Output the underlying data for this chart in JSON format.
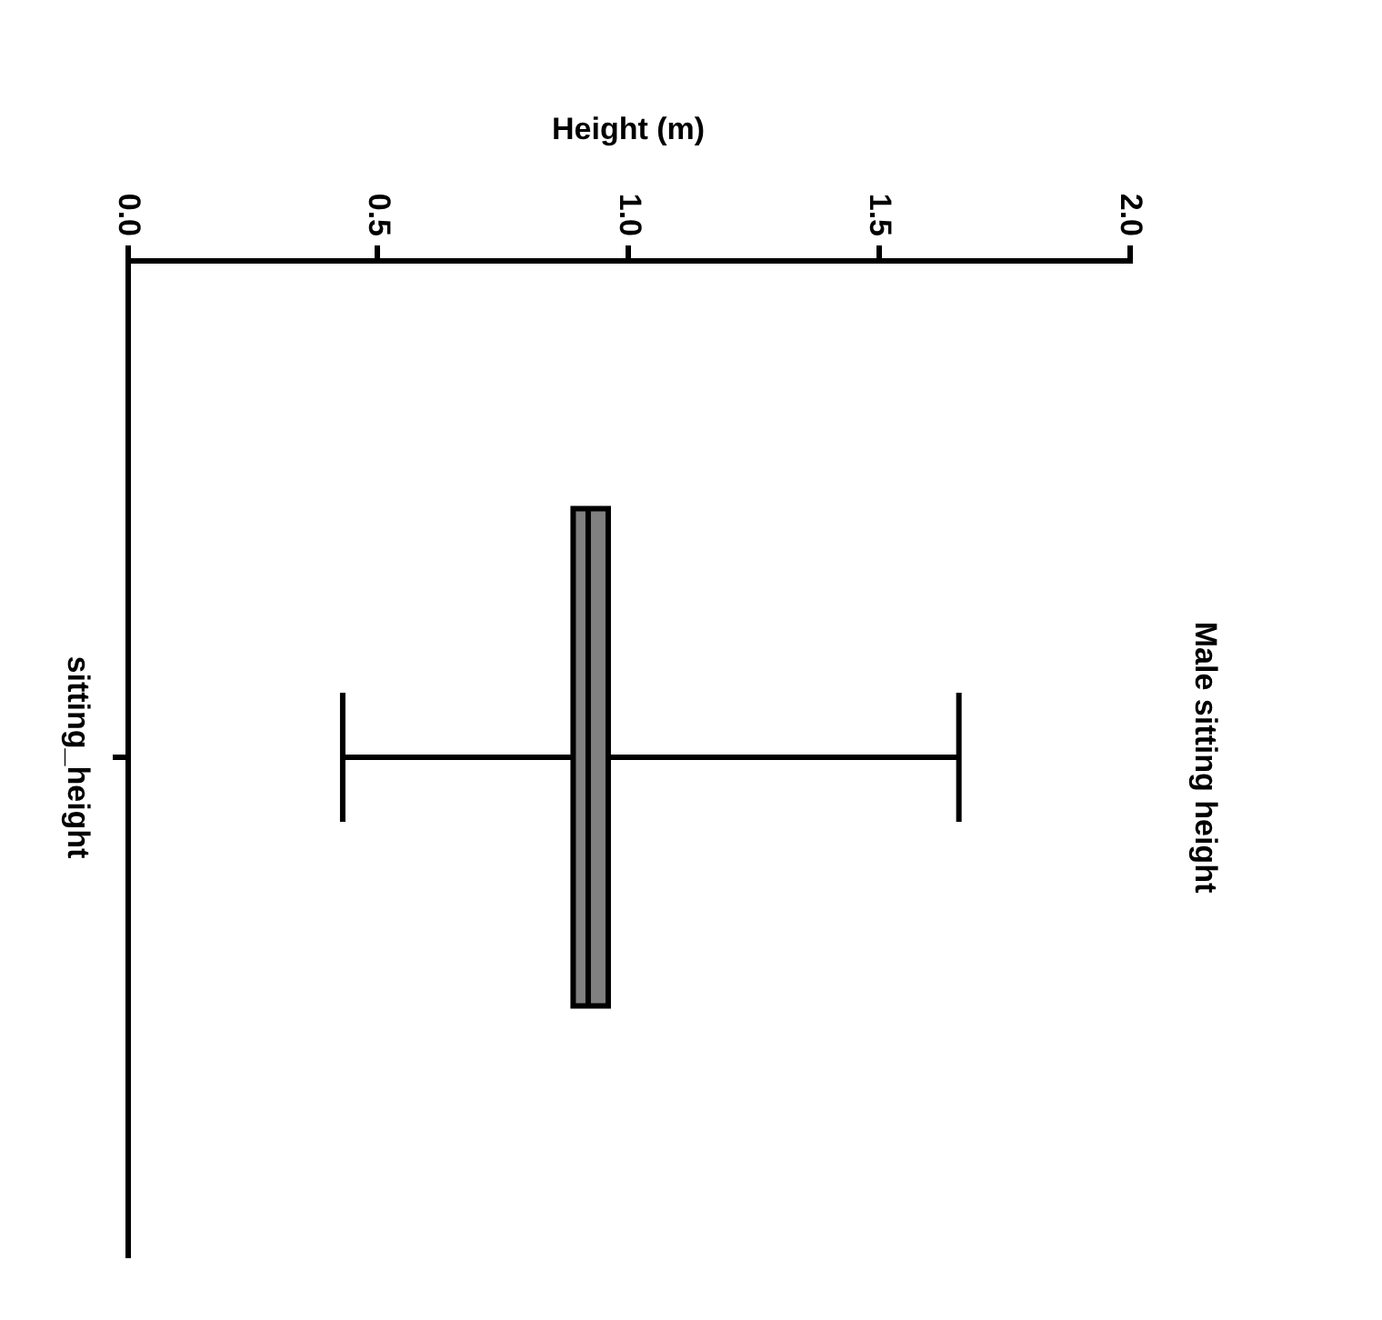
{
  "chart_data": {
    "type": "box",
    "orientation": "horizontal",
    "title": "Male sitting height",
    "xlabel": "Height (m)",
    "categories": [
      "sitting_height"
    ],
    "boxes": [
      {
        "low": 0.43,
        "q1": 0.89,
        "median": 0.92,
        "q3": 0.96,
        "high": 1.66
      }
    ],
    "color": "#808080",
    "xlim": [
      0,
      2
    ],
    "xticks": [
      {
        "value": 0,
        "label": "0.0"
      },
      {
        "value": 0.5,
        "label": "0.5"
      },
      {
        "value": 1,
        "label": "1.0"
      },
      {
        "value": 1.5,
        "label": "1.5"
      },
      {
        "value": 2,
        "label": "2.0"
      }
    ],
    "grid": false,
    "legend": false
  }
}
